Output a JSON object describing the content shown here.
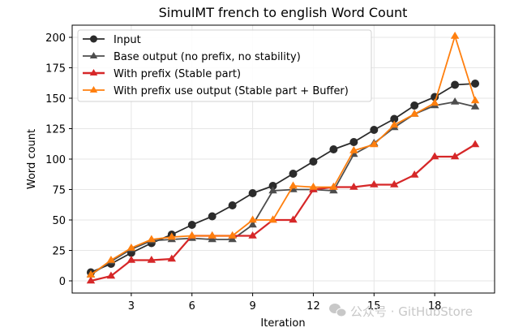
{
  "chart_data": {
    "type": "line",
    "title": "SimulMT french to english Word Count",
    "xlabel": "Iteration",
    "ylabel": "Word count",
    "x": [
      1,
      2,
      3,
      4,
      5,
      6,
      7,
      8,
      9,
      10,
      11,
      12,
      13,
      14,
      15,
      16,
      17,
      18,
      19,
      20
    ],
    "xticks": [
      3,
      6,
      9,
      12,
      15,
      18
    ],
    "yticks": [
      0,
      25,
      50,
      75,
      100,
      125,
      150,
      175,
      200
    ],
    "xlim": [
      0,
      21
    ],
    "ylim": [
      -10,
      210
    ],
    "grid": true,
    "legend_position": "upper left",
    "series": [
      {
        "name": "Input",
        "color": "#2b2b2b",
        "marker": "circle",
        "values": [
          7,
          14,
          23,
          31,
          38,
          46,
          53,
          62,
          72,
          78,
          88,
          98,
          108,
          114,
          124,
          133,
          144,
          151,
          161,
          162
        ]
      },
      {
        "name": "Base output (no prefix, no stability)",
        "color": "#4d4d4d",
        "marker": "triangle",
        "values": [
          5,
          16,
          26,
          33,
          34,
          35,
          34,
          34,
          46,
          74,
          75,
          75,
          74,
          104,
          113,
          126,
          137,
          144,
          147,
          143
        ]
      },
      {
        "name": "With prefix (Stable part)",
        "color": "#d62728",
        "marker": "triangle",
        "values": [
          0,
          4,
          17,
          17,
          18,
          37,
          37,
          37,
          37,
          50,
          50,
          75,
          77,
          77,
          79,
          79,
          87,
          102,
          102,
          112
        ]
      },
      {
        "name": "With prefix use output (Stable part + Buffer)",
        "color": "#ff7f0e",
        "marker": "triangle",
        "values": [
          5,
          17,
          27,
          34,
          36,
          37,
          37,
          37,
          50,
          50,
          78,
          77,
          77,
          107,
          112,
          128,
          137,
          146,
          201,
          148
        ]
      }
    ]
  },
  "watermark": "公众号 · GitHubStore"
}
